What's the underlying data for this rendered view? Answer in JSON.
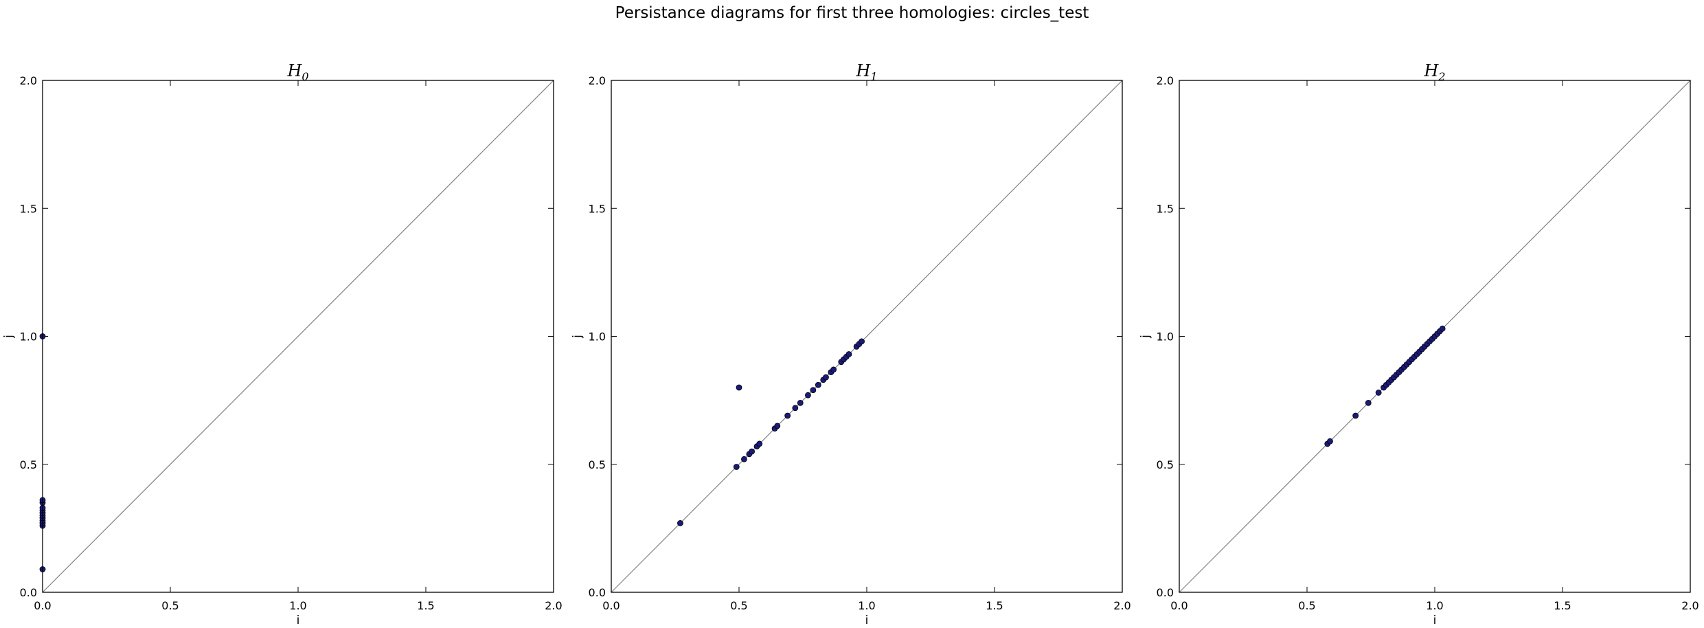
{
  "figure": {
    "title": "Persistance diagrams for first three homologies: circles_test"
  },
  "colors": {
    "marker_fill": "#1a1a7a",
    "marker_edge": "#000000",
    "diagonal": "#808080",
    "axes": "#000000",
    "background": "#ffffff"
  },
  "chart_data": [
    {
      "type": "scatter",
      "title": "H",
      "title_subscript": "0",
      "xlabel": "i",
      "ylabel": "j",
      "xlim": [
        0,
        2
      ],
      "ylim": [
        0,
        2
      ],
      "xticks": [
        "0.0",
        "0.5",
        "1.0",
        "1.5",
        "2.0"
      ],
      "yticks": [
        "0.0",
        "0.5",
        "1.0",
        "1.5",
        "2.0"
      ],
      "grid": false,
      "diagonal": true,
      "points": [
        {
          "x": 0.0,
          "y": 0.09
        },
        {
          "x": 0.0,
          "y": 0.26
        },
        {
          "x": 0.0,
          "y": 0.27
        },
        {
          "x": 0.0,
          "y": 0.28
        },
        {
          "x": 0.0,
          "y": 0.29
        },
        {
          "x": 0.0,
          "y": 0.3
        },
        {
          "x": 0.0,
          "y": 0.31
        },
        {
          "x": 0.0,
          "y": 0.32
        },
        {
          "x": 0.0,
          "y": 0.33
        },
        {
          "x": 0.0,
          "y": 0.35
        },
        {
          "x": 0.0,
          "y": 0.36
        },
        {
          "x": 0.0,
          "y": 1.0
        }
      ]
    },
    {
      "type": "scatter",
      "title": "H",
      "title_subscript": "1",
      "xlabel": "i",
      "ylabel": "j",
      "xlim": [
        0,
        2
      ],
      "ylim": [
        0,
        2
      ],
      "xticks": [
        "0.0",
        "0.5",
        "1.0",
        "1.5",
        "2.0"
      ],
      "yticks": [
        "0.0",
        "0.5",
        "1.0",
        "1.5",
        "2.0"
      ],
      "grid": false,
      "diagonal": true,
      "points": [
        {
          "x": 0.27,
          "y": 0.27
        },
        {
          "x": 0.49,
          "y": 0.49
        },
        {
          "x": 0.5,
          "y": 0.8
        },
        {
          "x": 0.52,
          "y": 0.52
        },
        {
          "x": 0.54,
          "y": 0.54
        },
        {
          "x": 0.55,
          "y": 0.55
        },
        {
          "x": 0.57,
          "y": 0.57
        },
        {
          "x": 0.58,
          "y": 0.58
        },
        {
          "x": 0.64,
          "y": 0.64
        },
        {
          "x": 0.65,
          "y": 0.65
        },
        {
          "x": 0.69,
          "y": 0.69
        },
        {
          "x": 0.72,
          "y": 0.72
        },
        {
          "x": 0.74,
          "y": 0.74
        },
        {
          "x": 0.77,
          "y": 0.77
        },
        {
          "x": 0.79,
          "y": 0.79
        },
        {
          "x": 0.81,
          "y": 0.81
        },
        {
          "x": 0.83,
          "y": 0.83
        },
        {
          "x": 0.84,
          "y": 0.84
        },
        {
          "x": 0.86,
          "y": 0.86
        },
        {
          "x": 0.87,
          "y": 0.87
        },
        {
          "x": 0.9,
          "y": 0.9
        },
        {
          "x": 0.91,
          "y": 0.91
        },
        {
          "x": 0.92,
          "y": 0.92
        },
        {
          "x": 0.93,
          "y": 0.93
        },
        {
          "x": 0.96,
          "y": 0.96
        },
        {
          "x": 0.97,
          "y": 0.97
        },
        {
          "x": 0.98,
          "y": 0.98
        }
      ]
    },
    {
      "type": "scatter",
      "title": "H",
      "title_subscript": "2",
      "xlabel": "i",
      "ylabel": "j",
      "xlim": [
        0,
        2
      ],
      "ylim": [
        0,
        2
      ],
      "xticks": [
        "0.0",
        "0.5",
        "1.0",
        "1.5",
        "2.0"
      ],
      "yticks": [
        "0.0",
        "0.5",
        "1.0",
        "1.5",
        "2.0"
      ],
      "grid": false,
      "diagonal": true,
      "points": [
        {
          "x": 0.58,
          "y": 0.58
        },
        {
          "x": 0.59,
          "y": 0.59
        },
        {
          "x": 0.69,
          "y": 0.69
        },
        {
          "x": 0.74,
          "y": 0.74
        },
        {
          "x": 0.78,
          "y": 0.78
        },
        {
          "x": 0.8,
          "y": 0.8
        },
        {
          "x": 0.81,
          "y": 0.81
        },
        {
          "x": 0.82,
          "y": 0.82
        },
        {
          "x": 0.83,
          "y": 0.83
        },
        {
          "x": 0.84,
          "y": 0.84
        },
        {
          "x": 0.85,
          "y": 0.85
        },
        {
          "x": 0.86,
          "y": 0.86
        },
        {
          "x": 0.87,
          "y": 0.87
        },
        {
          "x": 0.88,
          "y": 0.88
        },
        {
          "x": 0.89,
          "y": 0.89
        },
        {
          "x": 0.9,
          "y": 0.9
        },
        {
          "x": 0.91,
          "y": 0.91
        },
        {
          "x": 0.92,
          "y": 0.92
        },
        {
          "x": 0.93,
          "y": 0.93
        },
        {
          "x": 0.94,
          "y": 0.94
        },
        {
          "x": 0.95,
          "y": 0.95
        },
        {
          "x": 0.96,
          "y": 0.96
        },
        {
          "x": 0.97,
          "y": 0.97
        },
        {
          "x": 0.98,
          "y": 0.98
        },
        {
          "x": 0.99,
          "y": 0.99
        },
        {
          "x": 1.0,
          "y": 1.0
        },
        {
          "x": 1.01,
          "y": 1.01
        },
        {
          "x": 1.02,
          "y": 1.02
        },
        {
          "x": 1.03,
          "y": 1.03
        }
      ]
    }
  ]
}
